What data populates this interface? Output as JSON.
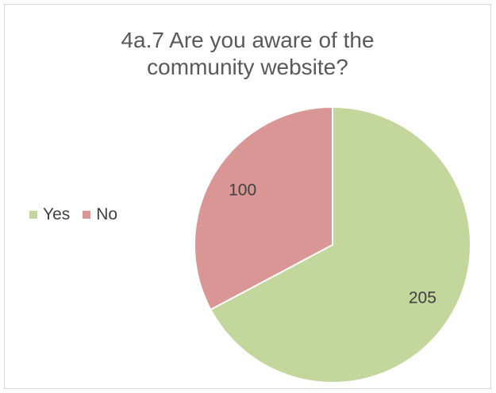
{
  "chart_data": {
    "type": "pie",
    "title_lines": [
      "4a.7   Are you aware of the",
      "community website?"
    ],
    "categories": [
      "Yes",
      "No"
    ],
    "values": [
      205,
      100
    ],
    "data_labels": [
      "205",
      "100"
    ],
    "colors": [
      "#c3d69b",
      "#d99694"
    ],
    "legend_position": "left"
  }
}
